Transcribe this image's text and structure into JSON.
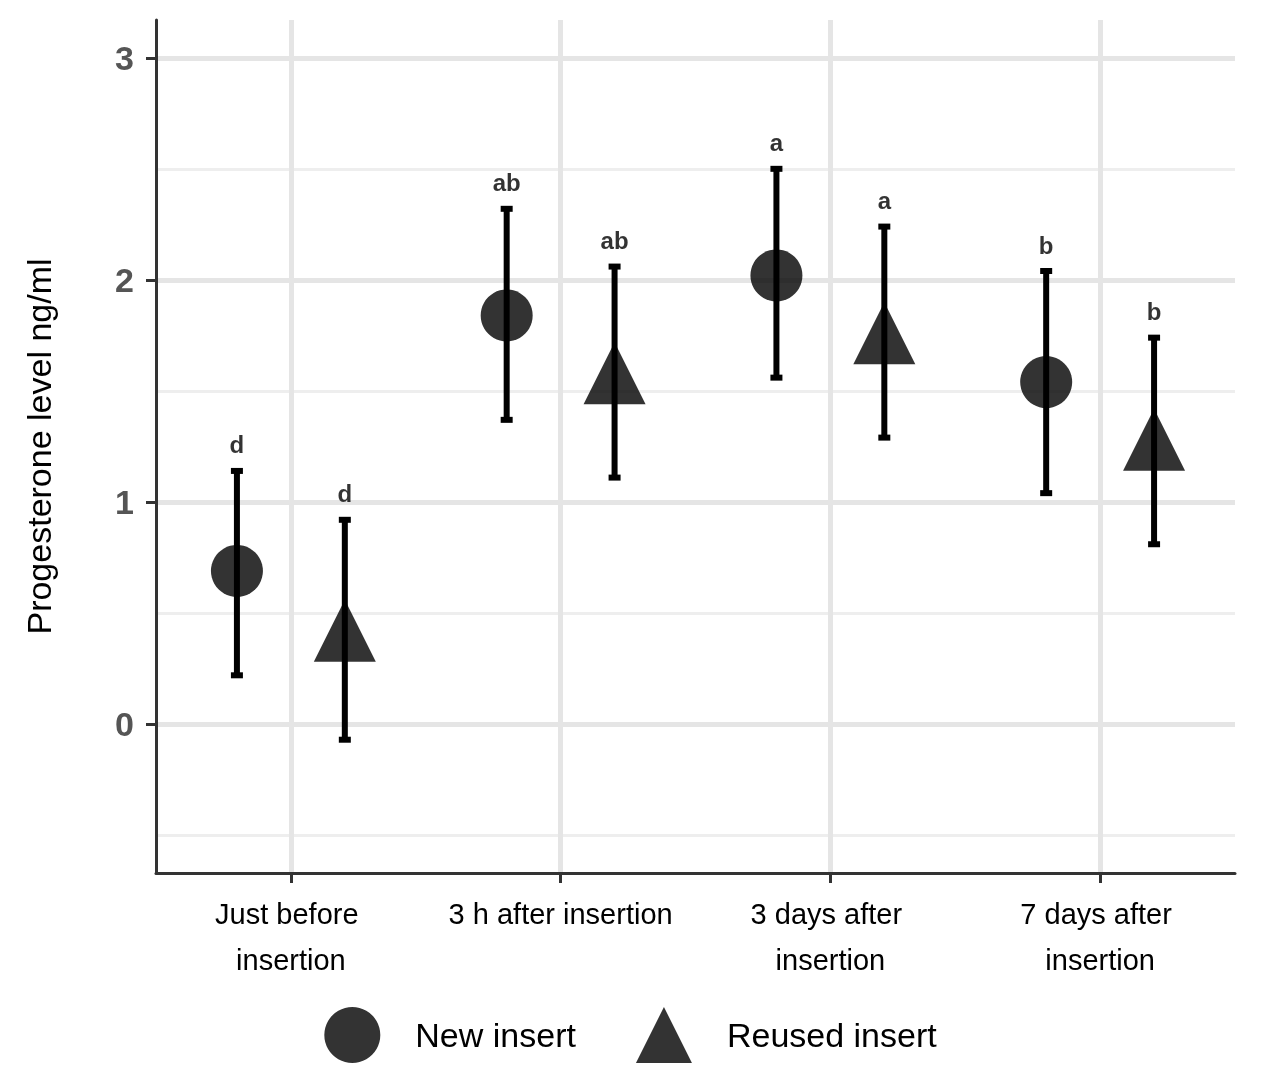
{
  "chart_data": {
    "type": "scatter",
    "ylabel": "Progesterone level ng/ml",
    "categories": [
      "Just before insertion",
      "3 h after insertion",
      "3 days after insertion",
      "7 days after insertion"
    ],
    "series": [
      {
        "name": "New insert",
        "color": "#000000",
        "marker": "circle",
        "values": [
          0.69,
          1.84,
          2.02,
          1.54
        ],
        "errors": [
          [
            0.22,
            1.14
          ],
          [
            1.37,
            2.32
          ],
          [
            1.56,
            2.5
          ],
          [
            1.04,
            2.04
          ]
        ]
      },
      {
        "name": "Reused insert",
        "color": "#000000",
        "marker": "triangle",
        "values": [
          0.42,
          1.58,
          1.76,
          1.28
        ],
        "errors": [
          [
            -0.07,
            0.92
          ],
          [
            1.11,
            2.06
          ],
          [
            1.29,
            2.24
          ],
          [
            0.81,
            1.74
          ]
        ]
      }
    ],
    "annotations": [
      "d",
      "d",
      "ab",
      "ab",
      "a",
      "a",
      "b",
      "b"
    ],
    "ylim": [
      -0.67,
      3.17
    ],
    "yticks": [
      0,
      1,
      2,
      3
    ],
    "grid": true,
    "legend": "bottom"
  }
}
